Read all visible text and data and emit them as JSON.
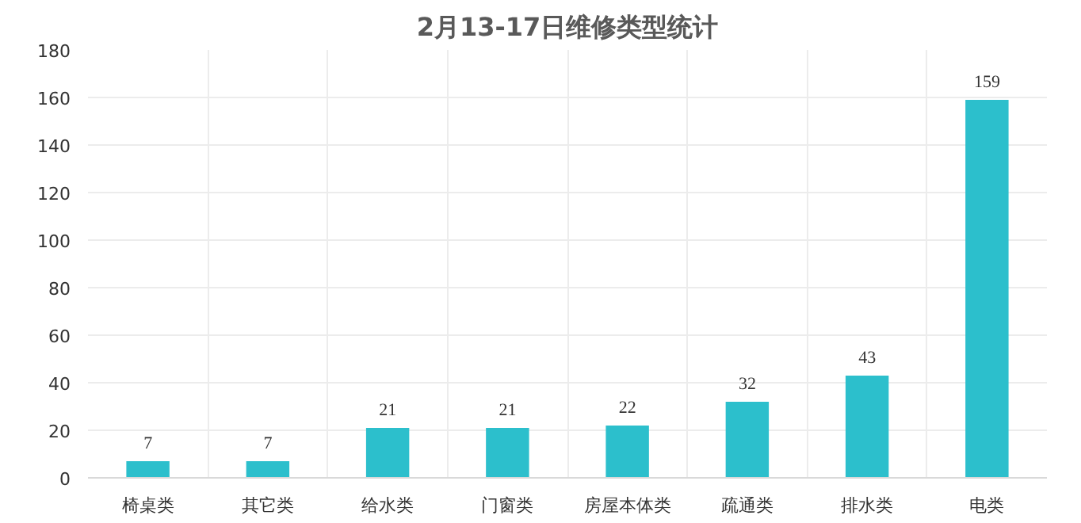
{
  "chart_data": {
    "type": "bar",
    "title": "2月13-17日维修类型统计",
    "categories": [
      "椅桌类",
      "其它类",
      "给水类",
      "门窗类",
      "房屋本体类",
      "疏通类",
      "排水类",
      "电类"
    ],
    "values": [
      7,
      7,
      21,
      21,
      22,
      32,
      43,
      159
    ],
    "color": "#2cbfcc",
    "ylim": [
      0,
      180
    ],
    "yticks": [
      0,
      20,
      40,
      60,
      80,
      100,
      120,
      140,
      160,
      180
    ],
    "grid": true,
    "data_labels": true
  }
}
